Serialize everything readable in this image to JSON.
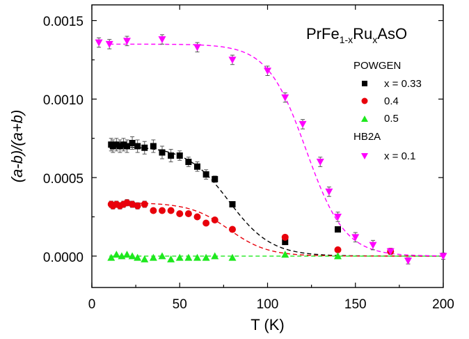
{
  "chart_data": {
    "type": "scatter",
    "title": "",
    "xlabel": "T (K)",
    "ylabel": "(a-b)/(a+b)",
    "xlim": [
      0,
      200
    ],
    "ylim": [
      -0.0002,
      0.0016
    ],
    "xticks": [
      "0",
      "50",
      "100",
      "150",
      "200"
    ],
    "yticks": [
      "0.0000",
      "0.0005",
      "0.0010",
      "0.0015"
    ],
    "formula": {
      "base": "PrFe",
      "sub1": "1-x",
      "mid": "Ru",
      "sub2": "x",
      "tail": "AsO"
    },
    "legend": {
      "group1": "POWGEN",
      "group2": "HB2A",
      "placement": "right"
    },
    "series": [
      {
        "name": "x = 0.33",
        "group": "POWGEN",
        "marker": "square",
        "color": "#000000",
        "points": [
          [
            11,
            0.00071
          ],
          [
            12,
            0.0007
          ],
          [
            14,
            0.00071
          ],
          [
            16,
            0.0007
          ],
          [
            18,
            0.00071
          ],
          [
            20,
            0.0007
          ],
          [
            23,
            0.00072
          ],
          [
            26,
            0.0007
          ],
          [
            30,
            0.00069
          ],
          [
            35,
            0.0007
          ],
          [
            40,
            0.00066
          ],
          [
            45,
            0.00064
          ],
          [
            50,
            0.00064
          ],
          [
            55,
            0.0006
          ],
          [
            60,
            0.00057
          ],
          [
            65,
            0.00052
          ],
          [
            70,
            0.00049
          ],
          [
            80,
            0.00033
          ],
          [
            110,
            9e-05
          ],
          [
            140,
            0.00017
          ]
        ],
        "errors": [
          4e-05,
          4e-05,
          4e-05,
          4e-05,
          4e-05,
          4e-05,
          4e-05,
          4e-05,
          4e-05,
          4e-05,
          4e-05,
          4e-05,
          3e-05,
          3e-05,
          3e-05,
          3e-05,
          2e-05,
          1e-05,
          1e-05,
          1e-05
        ],
        "fit": {
          "A": 0.0007,
          "Tc": 78,
          "w": 12,
          "color": "#000000"
        }
      },
      {
        "name": "0.4",
        "group": "POWGEN",
        "marker": "circle",
        "color": "#e8000b",
        "points": [
          [
            11,
            0.00033
          ],
          [
            12,
            0.00032
          ],
          [
            14,
            0.00033
          ],
          [
            16,
            0.00032
          ],
          [
            18,
            0.00033
          ],
          [
            20,
            0.00034
          ],
          [
            23,
            0.00033
          ],
          [
            26,
            0.00032
          ],
          [
            30,
            0.00033
          ],
          [
            35,
            0.00029
          ],
          [
            40,
            0.00029
          ],
          [
            45,
            0.00029
          ],
          [
            50,
            0.00027
          ],
          [
            55,
            0.00027
          ],
          [
            60,
            0.00025
          ],
          [
            65,
            0.00021
          ],
          [
            70,
            0.00023
          ],
          [
            80,
            0.00017
          ],
          [
            110,
            0.00012
          ],
          [
            140,
            4e-05
          ],
          [
            170,
            3e-05
          ]
        ],
        "errors": [
          2e-05,
          2e-05,
          2e-05,
          2e-05,
          2e-05,
          2e-05,
          2e-05,
          2e-05,
          2e-05,
          0,
          0,
          0,
          0,
          0,
          0,
          0,
          0,
          0,
          0,
          0,
          0
        ],
        "fit": {
          "A": 0.00034,
          "Tc": 78,
          "w": 11,
          "color": "#e8000b"
        }
      },
      {
        "name": "0.5",
        "group": "POWGEN",
        "marker": "triangle-up",
        "color": "#1ee81e",
        "points": [
          [
            11,
            -1e-05
          ],
          [
            14,
            1e-05
          ],
          [
            17,
            0.0
          ],
          [
            20,
            1e-05
          ],
          [
            23,
            0.0
          ],
          [
            26,
            -1e-05
          ],
          [
            30,
            -2e-05
          ],
          [
            35,
            -1e-05
          ],
          [
            40,
            0.0
          ],
          [
            45,
            -2e-05
          ],
          [
            50,
            -1e-05
          ],
          [
            55,
            -1e-05
          ],
          [
            60,
            -1e-05
          ],
          [
            65,
            -1e-05
          ],
          [
            70,
            0.0
          ],
          [
            80,
            -1e-05
          ],
          [
            110,
            1e-05
          ],
          [
            140,
            0.0
          ]
        ],
        "errors": [],
        "fit": {
          "A": 0.0,
          "Tc": 78,
          "w": 11,
          "color": "#1ee81e"
        }
      },
      {
        "name": "x = 0.1",
        "group": "HB2A",
        "marker": "triangle-down",
        "color": "#ff00ff",
        "points": [
          [
            4,
            0.00136
          ],
          [
            10,
            0.00135
          ],
          [
            20,
            0.00137
          ],
          [
            40,
            0.00138
          ],
          [
            60,
            0.00133
          ],
          [
            80,
            0.00125
          ],
          [
            100,
            0.00118
          ],
          [
            110,
            0.00101
          ],
          [
            120,
            0.00084
          ],
          [
            130,
            0.0006
          ],
          [
            135,
            0.00041
          ],
          [
            140,
            0.00025
          ],
          [
            150,
            0.00012
          ],
          [
            160,
            7e-05
          ],
          [
            170,
            3e-05
          ],
          [
            180,
            -3e-05
          ],
          [
            200,
            0.0
          ]
        ],
        "errors": [
          3e-05,
          3e-05,
          3e-05,
          3e-05,
          3e-05,
          3e-05,
          3e-05,
          3e-05,
          3e-05,
          3e-05,
          3e-05,
          3e-05,
          3e-05,
          3e-05,
          2e-05,
          2e-05,
          2e-05
        ],
        "fit": {
          "A": 0.00135,
          "Tc": 122,
          "w": 11,
          "color": "#ff00ff"
        }
      }
    ]
  }
}
